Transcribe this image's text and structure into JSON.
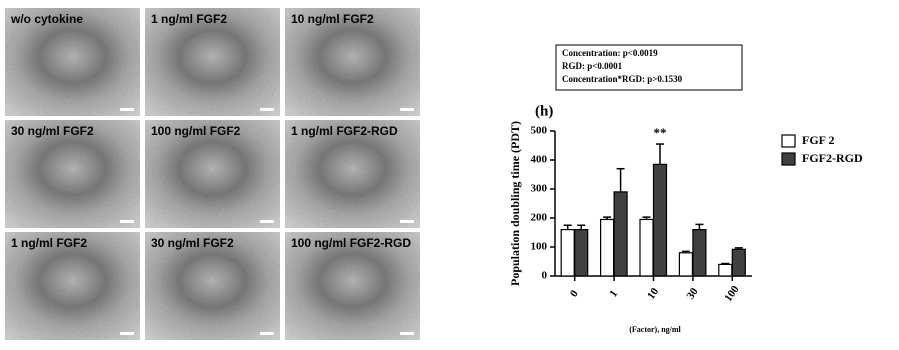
{
  "panels": [
    {
      "label": "w/o cytokine"
    },
    {
      "label": "1 ng/ml FGF2"
    },
    {
      "label": "10 ng/ml FGF2"
    },
    {
      "label": "30 ng/ml FGF2"
    },
    {
      "label": "100 ng/ml FGF2"
    },
    {
      "label": "1 ng/ml FGF2-RGD"
    },
    {
      "label": "1 ng/ml FGF2"
    },
    {
      "label": "30 ng/ml FGF2"
    },
    {
      "label": "100 ng/ml FGF2-RGD"
    }
  ],
  "stats": [
    "Concentration:  p<0.0019",
    "RGD:  p<0.0001",
    "Concentration*RGD:  p>0.1530"
  ],
  "chart_data": {
    "type": "bar",
    "panel_label": "(h)",
    "y_label": "Population doubling time (PDT)",
    "x_label": "(Factor),  ng/ml",
    "categories": [
      "0",
      "1",
      "10",
      "30",
      "100"
    ],
    "series": [
      {
        "name": "FGF 2",
        "color": "#ffffff",
        "values": [
          160,
          195,
          195,
          80,
          40
        ],
        "errors": [
          15,
          8,
          8,
          5,
          3
        ]
      },
      {
        "name": "FGF2-RGD",
        "color": "#404040",
        "values": [
          160,
          290,
          385,
          160,
          92
        ],
        "errors": [
          15,
          80,
          70,
          18,
          5
        ]
      }
    ],
    "ylim": [
      0,
      500
    ],
    "yticks": [
      0,
      100,
      200,
      300,
      400,
      500
    ],
    "annotation": "**"
  }
}
